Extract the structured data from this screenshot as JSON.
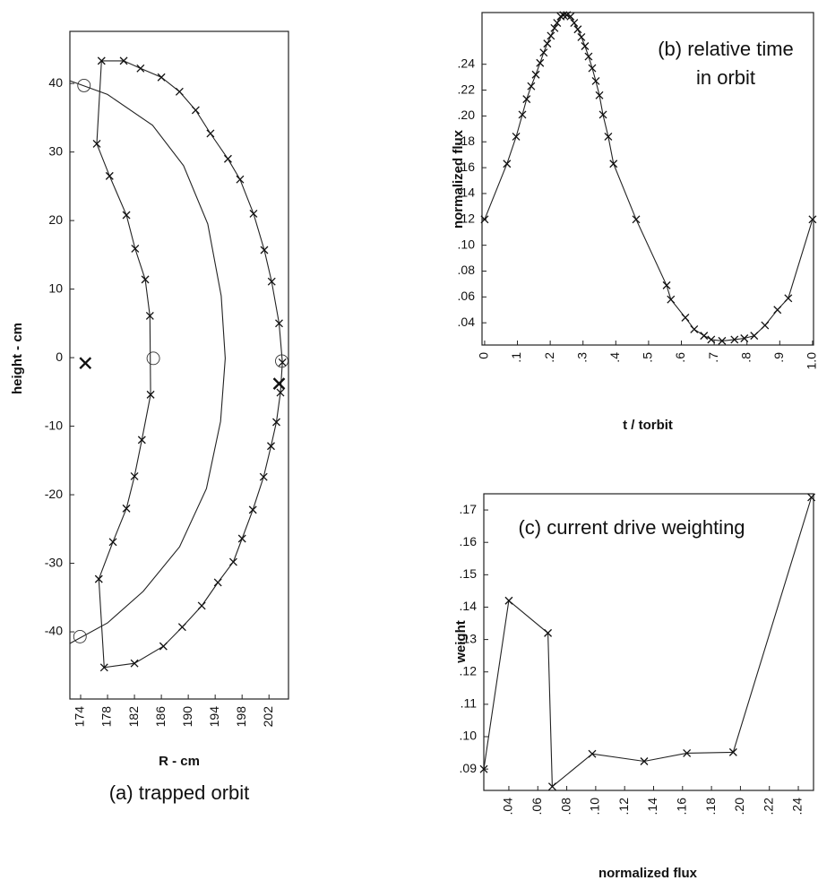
{
  "chart_data": [
    {
      "type": "line",
      "xlabel": "R - cm",
      "ylabel": "height - cm",
      "caption": "(a) trapped orbit",
      "xlim": [
        172.4,
        204.9
      ],
      "ylim": [
        -49.8,
        47.6
      ],
      "xticks": [
        174,
        178,
        182,
        186,
        190,
        194,
        198,
        202
      ],
      "yticks": [
        40,
        30,
        20,
        10,
        0,
        -10,
        -20,
        -30,
        -40
      ],
      "series": [
        {
          "marker": "x",
          "line": true,
          "closed": true,
          "x": [
            177.1,
            180.4,
            182.9,
            186,
            188.7,
            191.1,
            193.3,
            195.9,
            197.7,
            199.7,
            201.3,
            202.4,
            203.5,
            204,
            203.7,
            203.1,
            202.3,
            201.2,
            199.6,
            198,
            196.7,
            194.4,
            192,
            189.1,
            186.3,
            182,
            177.5,
            176.7,
            178.8,
            180.8,
            182,
            183.1,
            184.4,
            184.3,
            183.6,
            182.1,
            180.8,
            178.3,
            176.4
          ],
          "values": [
            43.3,
            43.3,
            42.2,
            40.9,
            38.8,
            36.1,
            32.7,
            29.0,
            26.0,
            21.0,
            15.7,
            11.1,
            5.0,
            -0.7,
            -5.1,
            -9.4,
            -12.9,
            -17.4,
            -22.2,
            -26.4,
            -29.8,
            -32.8,
            -36.2,
            -39.3,
            -42.1,
            -44.6,
            -45.2,
            -32.3,
            -26.9,
            -22.0,
            -17.3,
            -12.0,
            -5.4,
            6.1,
            11.4,
            15.9,
            20.8,
            26.5,
            31.2
          ]
        },
        {
          "marker": "none",
          "line": true,
          "x": [
            172.4,
            178,
            184.7,
            189.3,
            192.9,
            194.9,
            195.5,
            194.8,
            192.7,
            188.7,
            183.3,
            178,
            172.4
          ],
          "values": [
            40.4,
            38.4,
            33.9,
            28.0,
            19.5,
            9.0,
            -0.1,
            -9.3,
            -19.1,
            -27.6,
            -34.1,
            -38.7,
            -41.7
          ]
        },
        {
          "marker": "o",
          "line": false,
          "x": [
            174.5,
            184.8,
            203.9,
            173.9
          ],
          "values": [
            39.7,
            -0.1,
            -0.5,
            -40.7
          ]
        },
        {
          "marker": "X",
          "line": false,
          "x": [
            174.7,
            203.5
          ],
          "values": [
            -0.8,
            -3.8
          ]
        }
      ]
    },
    {
      "type": "line",
      "annotation": [
        "(b) relative time",
        "in orbit"
      ],
      "xlabel": "t / torbit",
      "ylabel": "normalized flux",
      "xlim": [
        -0.008,
        1.003
      ],
      "ylim": [
        0.0228,
        0.28
      ],
      "xticks": [
        0,
        {
          "value": 0.1,
          "label": ".1"
        },
        {
          "value": 0.2,
          "label": ".2"
        },
        {
          "value": 0.3,
          "label": ".3"
        },
        {
          "value": 0.4,
          "label": ".4"
        },
        {
          "value": 0.5,
          "label": ".5"
        },
        {
          "value": 0.6,
          "label": ".6"
        },
        {
          "value": 0.7,
          "label": ".7"
        },
        {
          "value": 0.8,
          "label": ".8"
        },
        {
          "value": 0.9,
          "label": ".9"
        },
        {
          "value": 1.0,
          "label": "1.0"
        }
      ],
      "yticks": [
        {
          "value": 0.04,
          "label": ".04"
        },
        {
          "value": 0.06,
          "label": ".06"
        },
        {
          "value": 0.08,
          "label": ".08"
        },
        {
          "value": 0.1,
          "label": ".10"
        },
        {
          "value": 0.12,
          "label": ".12"
        },
        {
          "value": 0.14,
          "label": ".14"
        },
        {
          "value": 0.16,
          "label": ".16"
        },
        {
          "value": 0.18,
          "label": ".18"
        },
        {
          "value": 0.2,
          "label": ".20"
        },
        {
          "value": 0.22,
          "label": ".22"
        },
        {
          "value": 0.24,
          "label": ".24"
        }
      ],
      "series": [
        {
          "marker": "x",
          "line": true,
          "x": [
            0,
            0.068,
            0.096,
            0.115,
            0.128,
            0.142,
            0.156,
            0.169,
            0.18,
            0.191,
            0.202,
            0.213,
            0.221,
            0.232,
            0.24,
            0.251,
            0.262,
            0.273,
            0.284,
            0.295,
            0.306,
            0.317,
            0.328,
            0.339,
            0.35,
            0.361,
            0.377,
            0.393,
            0.462,
            0.555,
            0.568,
            0.612,
            0.639,
            0.669,
            0.691,
            0.724,
            0.762,
            0.792,
            0.822,
            0.855,
            0.893,
            0.926,
            1.0
          ],
          "values": [
            0.12,
            0.163,
            0.184,
            0.201,
            0.213,
            0.223,
            0.232,
            0.241,
            0.249,
            0.256,
            0.262,
            0.268,
            0.272,
            0.277,
            0.278,
            0.278,
            0.277,
            0.272,
            0.267,
            0.261,
            0.254,
            0.246,
            0.237,
            0.227,
            0.216,
            0.201,
            0.184,
            0.163,
            0.12,
            0.069,
            0.058,
            0.044,
            0.035,
            0.03,
            0.027,
            0.026,
            0.027,
            0.028,
            0.03,
            0.038,
            0.05,
            0.059,
            0.12
          ]
        }
      ]
    },
    {
      "type": "line",
      "annotation": [
        "(c) current drive weighting"
      ],
      "xlabel": "normalized flux",
      "ylabel": "weight",
      "xlim": [
        0.0227,
        0.2505
      ],
      "ylim": [
        0.0834,
        0.175
      ],
      "xticks": [
        {
          "value": 0.04,
          "label": ".04"
        },
        {
          "value": 0.06,
          "label": ".06"
        },
        {
          "value": 0.08,
          "label": ".08"
        },
        {
          "value": 0.1,
          "label": ".10"
        },
        {
          "value": 0.12,
          "label": ".12"
        },
        {
          "value": 0.14,
          "label": ".14"
        },
        {
          "value": 0.16,
          "label": ".16"
        },
        {
          "value": 0.18,
          "label": ".18"
        },
        {
          "value": 0.2,
          "label": ".20"
        },
        {
          "value": 0.22,
          "label": ".22"
        },
        {
          "value": 0.24,
          "label": ".24"
        }
      ],
      "yticks": [
        {
          "value": 0.09,
          "label": ".09"
        },
        {
          "value": 0.1,
          "label": ".10"
        },
        {
          "value": 0.11,
          "label": ".11"
        },
        {
          "value": 0.12,
          "label": ".12"
        },
        {
          "value": 0.13,
          "label": ".13"
        },
        {
          "value": 0.14,
          "label": ".14"
        },
        {
          "value": 0.15,
          "label": ".15"
        },
        {
          "value": 0.16,
          "label": ".16"
        },
        {
          "value": 0.17,
          "label": ".17"
        }
      ],
      "series": [
        {
          "marker": "x",
          "line": true,
          "x": [
            0.0227,
            0.04,
            0.067,
            0.07,
            0.0976,
            0.1335,
            0.163,
            0.195,
            0.249
          ],
          "values": [
            0.09,
            0.142,
            0.132,
            0.0846,
            0.0947,
            0.0924,
            0.0949,
            0.0952,
            0.1739
          ]
        }
      ]
    }
  ]
}
